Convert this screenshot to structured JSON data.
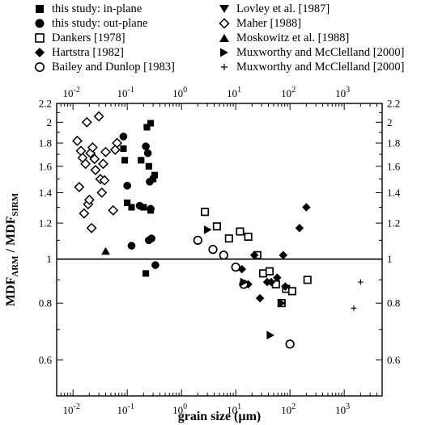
{
  "chart_data": {
    "type": "scatter",
    "x_scale": "log",
    "y_scale": "log",
    "xlim": [
      0.005,
      5000
    ],
    "ylim": [
      0.5,
      2.2
    ],
    "xlabel": "grain size (µm)",
    "ylabel": "MDF_ARM / MDF_SIRM",
    "ylabel_parts": {
      "a": "MDF",
      "a_sub": "ARM",
      "sep": " / ",
      "b": "MDF",
      "b_sub": "SIRM"
    },
    "x_ticks": [
      0.01,
      0.1,
      1,
      10,
      100,
      1000
    ],
    "x_tick_labels": [
      {
        "base": "10",
        "exp": "-2"
      },
      {
        "base": "10",
        "exp": "-1"
      },
      {
        "base": "10",
        "exp": "0"
      },
      {
        "base": "10",
        "exp": "1"
      },
      {
        "base": "10",
        "exp": "2"
      },
      {
        "base": "10",
        "exp": "3"
      }
    ],
    "y_ticks": [
      0.6,
      0.8,
      1,
      1.2,
      1.4,
      1.6,
      1.8,
      2,
      2.2
    ],
    "y_tick_labels": [
      "0.6",
      "0.8",
      "1",
      "1.2",
      "1.4",
      "1.6",
      "1.8",
      "2",
      "2.2"
    ],
    "reference_line_y": 1,
    "grid": false,
    "legend_position": "top",
    "series": [
      {
        "name": "this study: in-plane",
        "marker": "square",
        "filled": true,
        "points": [
          [
            0.085,
            1.75
          ],
          [
            0.09,
            1.65
          ],
          [
            0.1,
            1.33
          ],
          [
            0.12,
            1.3
          ],
          [
            0.18,
            1.65
          ],
          [
            0.2,
            1.3
          ],
          [
            0.23,
            1.95
          ],
          [
            0.25,
            1.6
          ],
          [
            0.27,
            1.99
          ],
          [
            0.3,
            1.5
          ],
          [
            0.32,
            1.53
          ],
          [
            0.27,
            1.28
          ],
          [
            0.22,
            0.93
          ]
        ]
      },
      {
        "name": "this study: out-plane",
        "marker": "circle",
        "filled": true,
        "points": [
          [
            0.085,
            1.86
          ],
          [
            0.1,
            1.45
          ],
          [
            0.12,
            1.07
          ],
          [
            0.17,
            1.31
          ],
          [
            0.22,
            1.77
          ],
          [
            0.24,
            1.71
          ],
          [
            0.25,
            1.1
          ],
          [
            0.26,
            1.48
          ],
          [
            0.27,
            1.29
          ],
          [
            0.28,
            1.11
          ],
          [
            0.33,
            0.97
          ]
        ]
      },
      {
        "name": "Dankers [1978]",
        "marker": "square",
        "filled": false,
        "points": [
          [
            2.7,
            1.27
          ],
          [
            4.5,
            1.18
          ],
          [
            7.5,
            1.11
          ],
          [
            12,
            1.15
          ],
          [
            17,
            1.12
          ],
          [
            25,
            1.02
          ],
          [
            32,
            0.93
          ],
          [
            42,
            0.94
          ],
          [
            55,
            0.88
          ],
          [
            70,
            0.8
          ],
          [
            85,
            0.86
          ],
          [
            110,
            0.85
          ],
          [
            210,
            0.9
          ]
        ]
      },
      {
        "name": "Hartstra [1982]",
        "marker": "diamond",
        "filled": true,
        "points": [
          [
            13,
            0.95
          ],
          [
            17,
            0.88
          ],
          [
            22,
            1.02
          ],
          [
            28,
            0.82
          ],
          [
            38,
            0.89
          ],
          [
            45,
            0.89
          ],
          [
            58,
            0.91
          ],
          [
            75,
            1.02
          ],
          [
            82,
            0.87
          ],
          [
            150,
            1.17
          ],
          [
            200,
            1.3
          ]
        ]
      },
      {
        "name": "Bailey and Dunlop [1983]",
        "marker": "circle",
        "filled": false,
        "points": [
          [
            2,
            1.1
          ],
          [
            3.8,
            1.05
          ],
          [
            6,
            1.02
          ],
          [
            10,
            0.96
          ],
          [
            14,
            0.88
          ],
          [
            100,
            0.65
          ]
        ]
      },
      {
        "name": "Lovley et al. [1987]",
        "marker": "triangle-down",
        "filled": true,
        "points": []
      },
      {
        "name": "Maher [1988]",
        "marker": "diamond",
        "filled": false,
        "points": [
          [
            0.012,
            1.82
          ],
          [
            0.013,
            1.44
          ],
          [
            0.014,
            1.73
          ],
          [
            0.015,
            1.67
          ],
          [
            0.016,
            1.26
          ],
          [
            0.017,
            1.62
          ],
          [
            0.018,
            2.0
          ],
          [
            0.019,
            1.32
          ],
          [
            0.02,
            1.35
          ],
          [
            0.021,
            1.71
          ],
          [
            0.022,
            1.17
          ],
          [
            0.023,
            1.76
          ],
          [
            0.025,
            1.66
          ],
          [
            0.026,
            1.57
          ],
          [
            0.03,
            2.06
          ],
          [
            0.032,
            1.5
          ],
          [
            0.034,
            1.4
          ],
          [
            0.036,
            1.62
          ],
          [
            0.038,
            1.49
          ],
          [
            0.04,
            1.72
          ],
          [
            0.055,
            1.28
          ],
          [
            0.06,
            1.74
          ],
          [
            0.065,
            1.8
          ]
        ]
      },
      {
        "name": "Moskowitz et al. [1988]",
        "marker": "triangle-up",
        "filled": true,
        "points": [
          [
            0.04,
            1.04
          ]
        ]
      },
      {
        "name": "Muxworthy and McClelland [2000]",
        "marker": "triangle-right",
        "filled": true,
        "points": [
          [
            3,
            1.16
          ],
          [
            14,
            0.89
          ],
          [
            43,
            0.68
          ],
          [
            70,
            0.8
          ]
        ]
      },
      {
        "name": "Muxworthy and McClelland [2000]",
        "marker": "plus",
        "filled": false,
        "points": [
          [
            1500,
            0.78
          ],
          [
            2000,
            0.89
          ]
        ]
      }
    ]
  }
}
